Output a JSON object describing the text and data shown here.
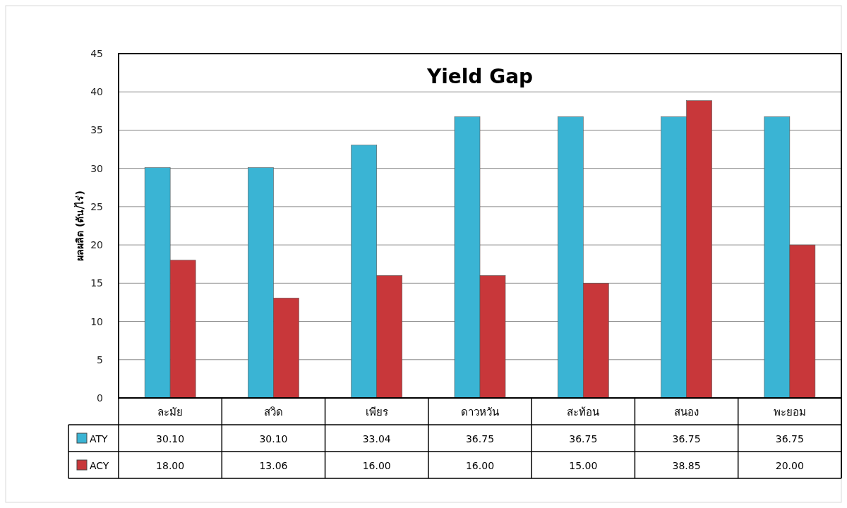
{
  "chart_data": {
    "type": "bar",
    "title": "Yield Gap",
    "ylabel": "ผลผลิต (ตัน/ไร่)",
    "categories": [
      "ละมัย",
      "สวิด",
      "เพียร",
      "ดาวหวัน",
      "สะท้อน",
      "สนอง",
      "พะยอม"
    ],
    "series": [
      {
        "name": "ATY",
        "color": "#3ab4d4",
        "values": [
          30.1,
          30.1,
          33.04,
          36.75,
          36.75,
          36.75,
          36.75
        ],
        "value_labels": [
          "30.10",
          "30.10",
          "33.04",
          "36.75",
          "36.75",
          "36.75",
          "36.75"
        ]
      },
      {
        "name": "ACY",
        "color": "#c8373a",
        "values": [
          18.0,
          13.06,
          16.0,
          16.0,
          15.0,
          38.85,
          20.0
        ],
        "value_labels": [
          "18.00",
          "13.06",
          "16.00",
          "16.00",
          "15.00",
          "38.85",
          "20.00"
        ]
      }
    ],
    "ylim": [
      0,
      45
    ],
    "yticks": [
      0,
      5,
      10,
      15,
      20,
      25,
      30,
      35,
      40,
      45
    ],
    "grid": "y",
    "legend": "bottom"
  }
}
